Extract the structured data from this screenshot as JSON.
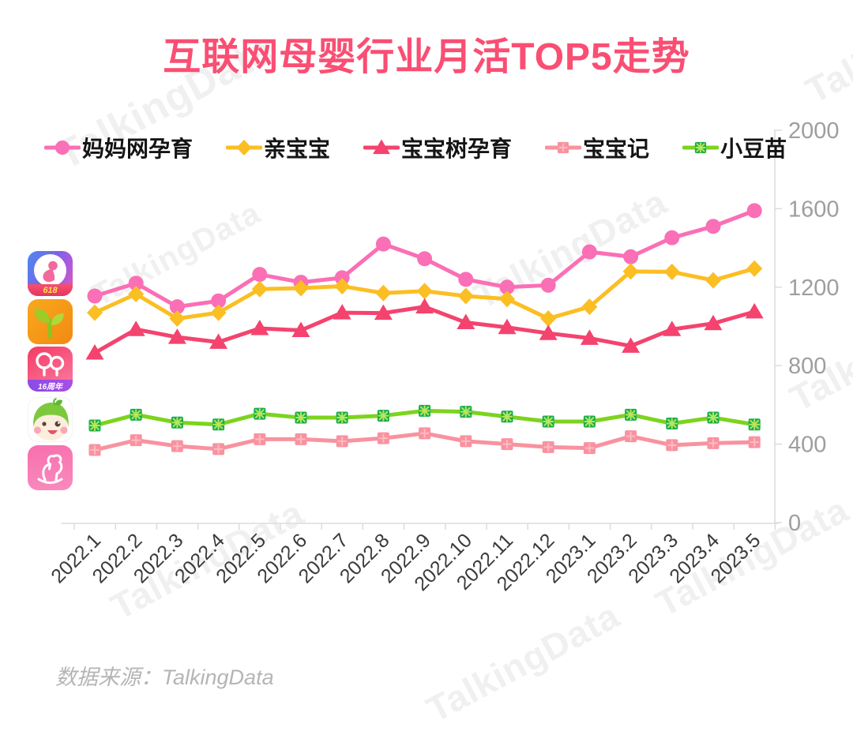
{
  "title": "互联网母婴行业月活TOP5走势",
  "source_note": "数据来源：TalkingData",
  "watermark": "TalkingData",
  "app_icons": [
    {
      "name": "妈妈网孕育",
      "badge": "618"
    },
    {
      "name": "亲宝宝",
      "badge": ""
    },
    {
      "name": "宝宝树孕育",
      "badge": "16周年"
    },
    {
      "name": "小豆苗",
      "badge": ""
    },
    {
      "name": "宝宝记",
      "badge": ""
    }
  ],
  "chart_data": {
    "type": "line",
    "title": "互联网母婴行业月活TOP5走势",
    "xlabel": "",
    "ylabel": "",
    "ylim": [
      0,
      2000
    ],
    "y_ticks": [
      0,
      400,
      800,
      1200,
      1600,
      2000
    ],
    "grid": false,
    "legend_position": "top",
    "axis_color": "#dcdcdc",
    "tick_label_color": "#9e9e9e",
    "x_label_color": "#3a3a3a",
    "categories": [
      "2022.1",
      "2022.2",
      "2022.3",
      "2022.4",
      "2022.5",
      "2022.6",
      "2022.7",
      "2022.8",
      "2022.9",
      "2022.10",
      "2022.11",
      "2022.12",
      "2023.1",
      "2023.2",
      "2023.3",
      "2023.4",
      "2023.5"
    ],
    "series": [
      {
        "name": "妈妈网孕育",
        "marker": "circle",
        "color": "#FA6FB5",
        "values": [
          1155,
          1220,
          1100,
          1130,
          1265,
          1225,
          1248,
          1420,
          1345,
          1240,
          1200,
          1210,
          1380,
          1355,
          1452,
          1510,
          1590
        ]
      },
      {
        "name": "亲宝宝",
        "marker": "diamond",
        "color": "#FBBE23",
        "values": [
          1070,
          1165,
          1040,
          1070,
          1190,
          1195,
          1205,
          1170,
          1180,
          1155,
          1140,
          1040,
          1100,
          1280,
          1278,
          1235,
          1295
        ]
      },
      {
        "name": "宝宝树孕育",
        "marker": "triangle",
        "color": "#F4436E",
        "values": [
          865,
          985,
          945,
          920,
          990,
          980,
          1070,
          1068,
          1100,
          1020,
          995,
          965,
          940,
          900,
          985,
          1015,
          1075
        ]
      },
      {
        "name": "宝宝记",
        "marker": "square-plus",
        "color": "#F9929F",
        "marker_detail": "#FBBCC3",
        "values": [
          370,
          420,
          390,
          375,
          425,
          425,
          415,
          430,
          455,
          415,
          400,
          385,
          380,
          440,
          395,
          405,
          410
        ]
      },
      {
        "name": "小豆苗",
        "marker": "square-x",
        "color": "#7CD41D",
        "marker_fill": "#17AD4E",
        "marker_detail": "#B9E65A",
        "values": [
          495,
          550,
          510,
          500,
          555,
          535,
          535,
          545,
          570,
          565,
          540,
          515,
          515,
          550,
          505,
          535,
          500
        ]
      }
    ]
  }
}
